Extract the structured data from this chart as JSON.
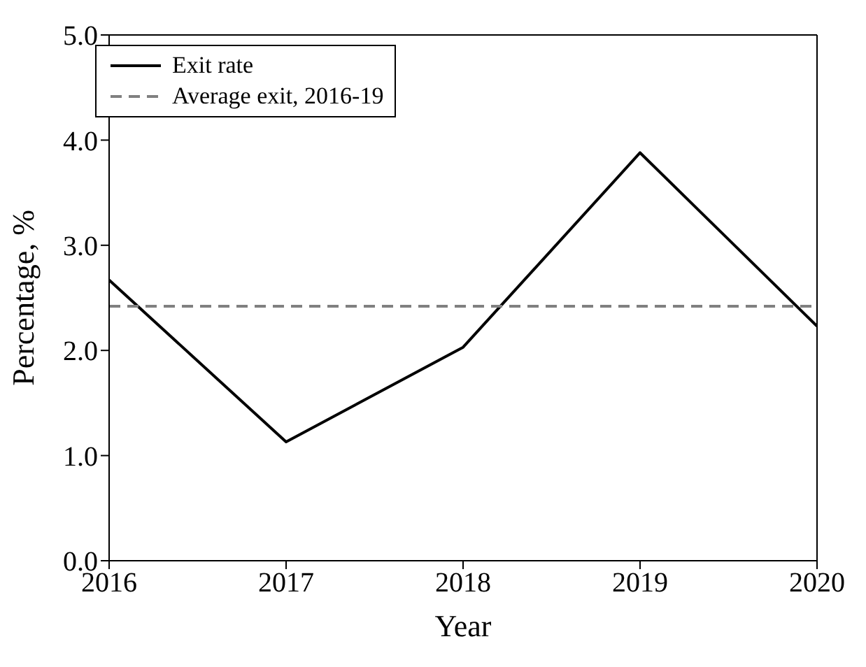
{
  "chart_data": {
    "type": "line",
    "xlabel": "Year",
    "ylabel": "Percentage, %",
    "x": [
      2016,
      2017,
      2018,
      2019,
      2020
    ],
    "series": [
      {
        "name": "Exit rate",
        "color": "#000000",
        "values": [
          2.67,
          1.13,
          2.03,
          3.88,
          2.23
        ],
        "line_style": "solid"
      },
      {
        "name": "Average exit, 2016-19",
        "color": "#808080",
        "x": [
          2016,
          2020
        ],
        "values": [
          2.42,
          2.42
        ],
        "line_style": "dashed"
      }
    ],
    "xlim": [
      2016,
      2020
    ],
    "xticks": [
      2016,
      2017,
      2018,
      2019,
      2020
    ],
    "ylim": [
      0,
      5
    ],
    "yticks": [
      {
        "value": 0,
        "label": "0.0"
      },
      {
        "value": 1,
        "label": "1.0"
      },
      {
        "value": 2,
        "label": "2.0"
      },
      {
        "value": 3,
        "label": "3.0"
      },
      {
        "value": 4,
        "label": "4.0"
      },
      {
        "value": 5,
        "label": "5.0"
      }
    ],
    "legend": "top left",
    "grid": false,
    "marker": "none"
  }
}
